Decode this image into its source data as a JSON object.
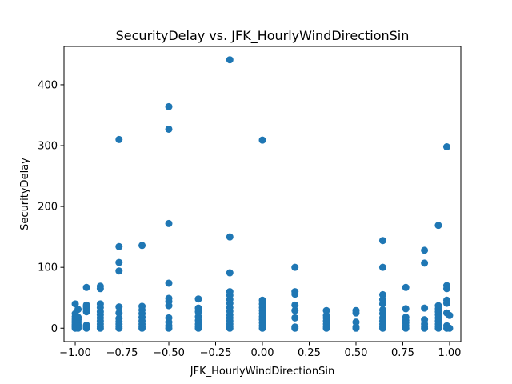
{
  "chart_data": {
    "type": "scatter",
    "title": "SecurityDelay vs. JFK_HourlyWindDirectionSin",
    "xlabel": "JFK_HourlyWindDirectionSin",
    "ylabel": "SecurityDelay",
    "xlim": [
      -1.06,
      1.06
    ],
    "ylim": [
      -22,
      463
    ],
    "xticks": [
      -1.0,
      -0.75,
      -0.5,
      -0.25,
      0.0,
      0.25,
      0.5,
      0.75,
      1.0
    ],
    "xtick_labels": [
      "−1.00",
      "−0.75",
      "−0.50",
      "−0.25",
      "0.00",
      "0.25",
      "0.50",
      "0.75",
      "1.00"
    ],
    "yticks": [
      0,
      100,
      200,
      300,
      400
    ],
    "ytick_labels": [
      "0",
      "100",
      "200",
      "300",
      "400"
    ],
    "grid": false,
    "legend": "none",
    "marker_color": "#1f77b4",
    "series": [
      {
        "points": [
          [
            -1.0,
            0
          ],
          [
            -1.0,
            2
          ],
          [
            -1.0,
            4
          ],
          [
            -1.0,
            6
          ],
          [
            -1.0,
            9
          ],
          [
            -1.0,
            12
          ],
          [
            -1.0,
            15
          ],
          [
            -1.0,
            19
          ],
          [
            -1.0,
            24
          ],
          [
            -1.0,
            40
          ],
          [
            -0.985,
            0
          ],
          [
            -0.985,
            3
          ],
          [
            -0.985,
            6
          ],
          [
            -0.985,
            10
          ],
          [
            -0.985,
            14
          ],
          [
            -0.985,
            18
          ],
          [
            -0.985,
            31
          ],
          [
            -0.94,
            0
          ],
          [
            -0.94,
            2
          ],
          [
            -0.94,
            5
          ],
          [
            -0.94,
            27
          ],
          [
            -0.94,
            32
          ],
          [
            -0.94,
            35
          ],
          [
            -0.94,
            38
          ],
          [
            -0.94,
            67
          ],
          [
            -0.866,
            0
          ],
          [
            -0.866,
            3
          ],
          [
            -0.866,
            7
          ],
          [
            -0.866,
            12
          ],
          [
            -0.866,
            17
          ],
          [
            -0.866,
            22
          ],
          [
            -0.866,
            27
          ],
          [
            -0.866,
            34
          ],
          [
            -0.866,
            40
          ],
          [
            -0.866,
            65
          ],
          [
            -0.866,
            69
          ],
          [
            -0.766,
            0
          ],
          [
            -0.766,
            3
          ],
          [
            -0.766,
            7
          ],
          [
            -0.766,
            11
          ],
          [
            -0.766,
            16
          ],
          [
            -0.766,
            25
          ],
          [
            -0.766,
            35
          ],
          [
            -0.766,
            94
          ],
          [
            -0.766,
            108
          ],
          [
            -0.766,
            134
          ],
          [
            -0.766,
            310
          ],
          [
            -0.643,
            0
          ],
          [
            -0.643,
            3
          ],
          [
            -0.643,
            7
          ],
          [
            -0.643,
            12
          ],
          [
            -0.643,
            18
          ],
          [
            -0.643,
            24
          ],
          [
            -0.643,
            30
          ],
          [
            -0.643,
            36
          ],
          [
            -0.643,
            136
          ],
          [
            -0.5,
            0
          ],
          [
            -0.5,
            4
          ],
          [
            -0.5,
            10
          ],
          [
            -0.5,
            17
          ],
          [
            -0.5,
            37
          ],
          [
            -0.5,
            44
          ],
          [
            -0.5,
            49
          ],
          [
            -0.5,
            74
          ],
          [
            -0.5,
            172
          ],
          [
            -0.5,
            327
          ],
          [
            -0.5,
            364
          ],
          [
            -0.342,
            0
          ],
          [
            -0.342,
            3
          ],
          [
            -0.342,
            7
          ],
          [
            -0.342,
            13
          ],
          [
            -0.342,
            19
          ],
          [
            -0.342,
            27
          ],
          [
            -0.342,
            33
          ],
          [
            -0.342,
            48
          ],
          [
            -0.174,
            0
          ],
          [
            -0.174,
            3
          ],
          [
            -0.174,
            7
          ],
          [
            -0.174,
            12
          ],
          [
            -0.174,
            17
          ],
          [
            -0.174,
            22
          ],
          [
            -0.174,
            28
          ],
          [
            -0.174,
            34
          ],
          [
            -0.174,
            41
          ],
          [
            -0.174,
            47
          ],
          [
            -0.174,
            54
          ],
          [
            -0.174,
            60
          ],
          [
            -0.174,
            91
          ],
          [
            -0.174,
            150
          ],
          [
            -0.174,
            441
          ],
          [
            0.0,
            0
          ],
          [
            0.0,
            4
          ],
          [
            0.0,
            9
          ],
          [
            0.0,
            14
          ],
          [
            0.0,
            19
          ],
          [
            0.0,
            24
          ],
          [
            0.0,
            29
          ],
          [
            0.0,
            34
          ],
          [
            0.0,
            40
          ],
          [
            0.0,
            46
          ],
          [
            0.0,
            309
          ],
          [
            0.174,
            0
          ],
          [
            0.174,
            2
          ],
          [
            0.174,
            17
          ],
          [
            0.174,
            29
          ],
          [
            0.174,
            38
          ],
          [
            0.174,
            56
          ],
          [
            0.174,
            60
          ],
          [
            0.174,
            100
          ],
          [
            0.342,
            0
          ],
          [
            0.342,
            3
          ],
          [
            0.342,
            7
          ],
          [
            0.342,
            12
          ],
          [
            0.342,
            17
          ],
          [
            0.342,
            21
          ],
          [
            0.342,
            29
          ],
          [
            0.5,
            0
          ],
          [
            0.5,
            2
          ],
          [
            0.5,
            10
          ],
          [
            0.5,
            25
          ],
          [
            0.5,
            29
          ],
          [
            0.643,
            0
          ],
          [
            0.643,
            3
          ],
          [
            0.643,
            7
          ],
          [
            0.643,
            12
          ],
          [
            0.643,
            17
          ],
          [
            0.643,
            24
          ],
          [
            0.643,
            30
          ],
          [
            0.643,
            40
          ],
          [
            0.643,
            47
          ],
          [
            0.643,
            55
          ],
          [
            0.643,
            100
          ],
          [
            0.643,
            144
          ],
          [
            0.766,
            0
          ],
          [
            0.766,
            4
          ],
          [
            0.766,
            9
          ],
          [
            0.766,
            13
          ],
          [
            0.766,
            18
          ],
          [
            0.766,
            32
          ],
          [
            0.766,
            67
          ],
          [
            0.866,
            0
          ],
          [
            0.866,
            3
          ],
          [
            0.866,
            7
          ],
          [
            0.866,
            14
          ],
          [
            0.866,
            33
          ],
          [
            0.866,
            107
          ],
          [
            0.866,
            128
          ],
          [
            0.94,
            0
          ],
          [
            0.94,
            3
          ],
          [
            0.94,
            7
          ],
          [
            0.94,
            12
          ],
          [
            0.94,
            17
          ],
          [
            0.94,
            22
          ],
          [
            0.94,
            27
          ],
          [
            0.94,
            32
          ],
          [
            0.94,
            37
          ],
          [
            0.94,
            169
          ],
          [
            0.985,
            0
          ],
          [
            0.985,
            4
          ],
          [
            0.985,
            25
          ],
          [
            0.985,
            41
          ],
          [
            0.985,
            46
          ],
          [
            0.985,
            65
          ],
          [
            0.985,
            70
          ],
          [
            0.985,
            298
          ],
          [
            1.0,
            0
          ],
          [
            1.0,
            21
          ]
        ]
      }
    ]
  }
}
